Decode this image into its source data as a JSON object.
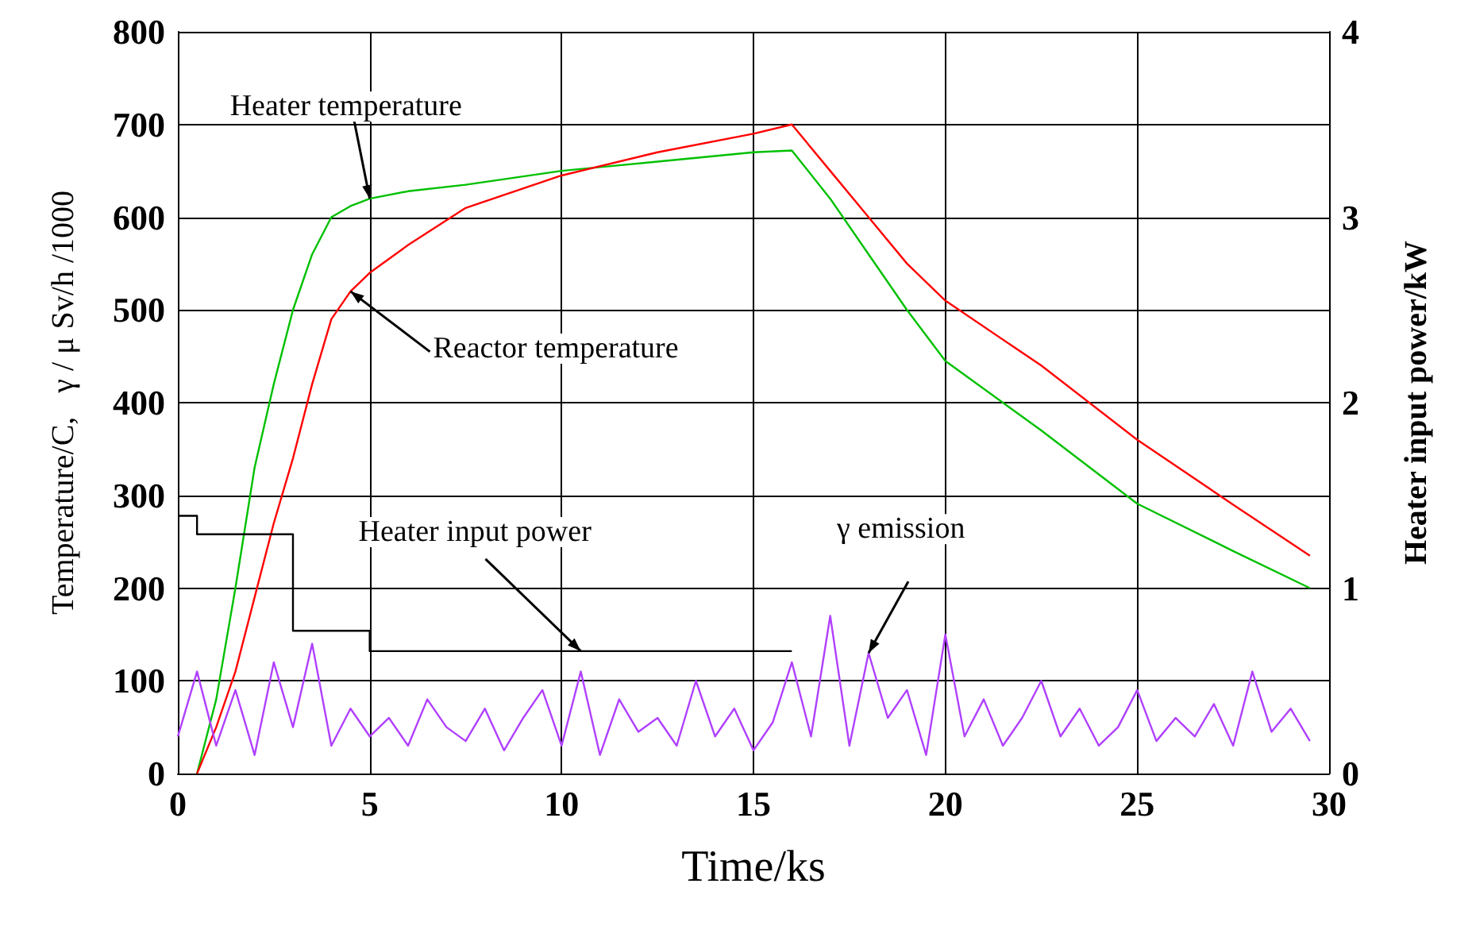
{
  "chart_data": {
    "type": "line",
    "xlabel": "Time/ks",
    "ylabel": "Temperature/C,   γ / μ Sv/h /1000",
    "y2label": "Heater input power/kW",
    "xlim": [
      0,
      30
    ],
    "xticks": [
      0,
      5,
      10,
      15,
      20,
      25,
      30
    ],
    "ylim": [
      0,
      800
    ],
    "yticks": [
      0,
      100,
      200,
      300,
      400,
      500,
      600,
      700,
      800
    ],
    "y2lim": [
      0,
      4
    ],
    "y2ticks": [
      0,
      1,
      2,
      3,
      4
    ],
    "grid": true,
    "legend": false,
    "series": [
      {
        "name": "Heater temperature",
        "color": "#00c000",
        "x": [
          0.5,
          1,
          1.5,
          2,
          2.5,
          3,
          3.5,
          4,
          4.5,
          5,
          6,
          7.5,
          10,
          12.5,
          15,
          16,
          17,
          18,
          19,
          20,
          22.5,
          25,
          27.5,
          29.5
        ],
        "values": [
          0,
          80,
          200,
          330,
          420,
          500,
          560,
          600,
          612,
          620,
          628,
          635,
          650,
          660,
          670,
          672,
          620,
          560,
          500,
          445,
          370,
          291,
          240,
          200
        ]
      },
      {
        "name": "Reactor temperature",
        "color": "#ff0000",
        "x": [
          0.5,
          1,
          1.5,
          2,
          2.5,
          3,
          3.5,
          4,
          4.5,
          5,
          6,
          7.5,
          10,
          12.5,
          15,
          16,
          17,
          18,
          19,
          20,
          22.5,
          25,
          27.5,
          29.5
        ],
        "values": [
          0,
          50,
          110,
          190,
          270,
          340,
          420,
          490,
          520,
          540,
          570,
          610,
          645,
          670,
          690,
          700,
          650,
          600,
          550,
          510,
          440,
          360,
          290,
          235
        ]
      },
      {
        "name": "Heater input power",
        "type": "step",
        "axis": "y2",
        "color": "#000000",
        "x": [
          0,
          0.5,
          3,
          5,
          16
        ],
        "values": [
          1.39,
          1.29,
          0.77,
          0.66,
          0.66
        ]
      },
      {
        "name": "γ emission",
        "color": "#b040ff",
        "x": [
          0,
          0.5,
          1,
          1.5,
          2,
          2.5,
          3,
          3.5,
          4,
          4.5,
          5,
          5.5,
          6,
          6.5,
          7,
          7.5,
          8,
          8.5,
          9,
          9.5,
          10,
          10.5,
          11,
          11.5,
          12,
          12.5,
          13,
          13.5,
          14,
          14.5,
          15,
          15.5,
          16,
          16.5,
          17,
          17.5,
          18,
          18.5,
          19,
          19.5,
          20,
          20.5,
          21,
          21.5,
          22,
          22.5,
          23,
          23.5,
          24,
          24.5,
          25,
          25.5,
          26,
          26.5,
          27,
          27.5,
          28,
          28.5,
          29,
          29.5
        ],
        "values": [
          40,
          110,
          30,
          90,
          20,
          120,
          50,
          140,
          30,
          70,
          40,
          60,
          30,
          80,
          50,
          35,
          70,
          25,
          60,
          90,
          30,
          110,
          20,
          80,
          45,
          60,
          30,
          100,
          40,
          70,
          25,
          55,
          120,
          40,
          170,
          30,
          130,
          60,
          90,
          20,
          150,
          40,
          80,
          30,
          60,
          100,
          40,
          70,
          30,
          50,
          90,
          35,
          60,
          40,
          75,
          30,
          110,
          45,
          70,
          35
        ]
      }
    ]
  }
}
